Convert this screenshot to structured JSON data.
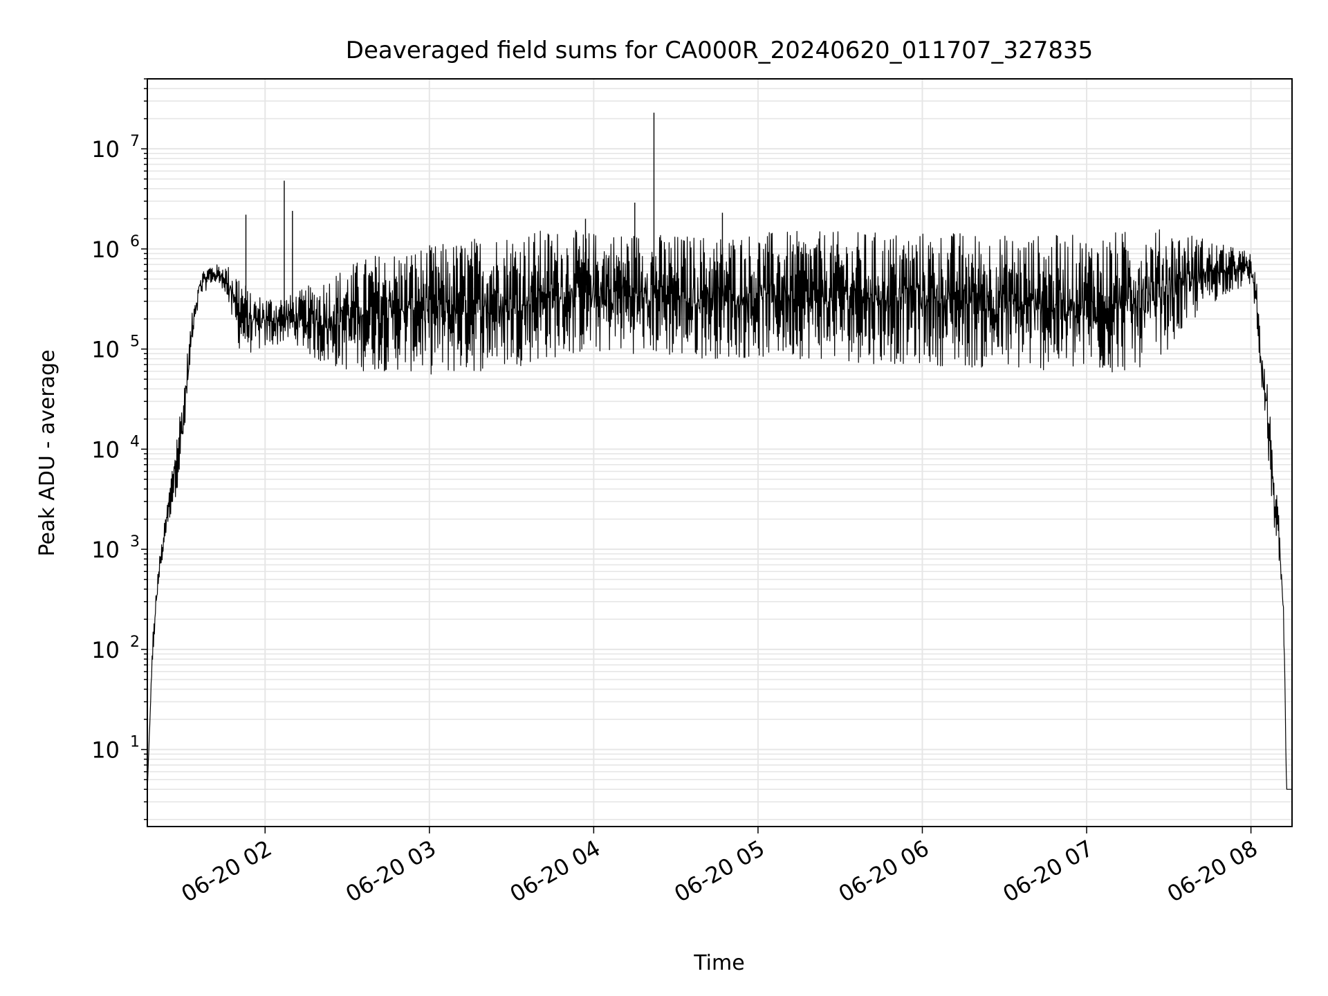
{
  "chart_data": {
    "type": "line",
    "title": "Deaveraged field sums for CA000R_20240620_011707_327835",
    "xlabel": "Time",
    "ylabel": "Peak ADU - average",
    "yscale": "log",
    "ylim": [
      1.7,
      50000000
    ],
    "xlim": [
      "2024-06-20 01:17",
      "2024-06-20 08:15"
    ],
    "grid": true,
    "x_ticks": [
      {
        "time": "2024-06-20 02:00",
        "label": "06-20 02"
      },
      {
        "time": "2024-06-20 03:00",
        "label": "06-20 03"
      },
      {
        "time": "2024-06-20 04:00",
        "label": "06-20 04"
      },
      {
        "time": "2024-06-20 05:00",
        "label": "06-20 05"
      },
      {
        "time": "2024-06-20 06:00",
        "label": "06-20 06"
      },
      {
        "time": "2024-06-20 07:00",
        "label": "06-20 07"
      },
      {
        "time": "2024-06-20 08:00",
        "label": "06-20 08"
      }
    ],
    "y_ticks": [
      {
        "value": 10,
        "mantissa": "10",
        "exponent": "1"
      },
      {
        "value": 100,
        "mantissa": "10",
        "exponent": "2"
      },
      {
        "value": 1000,
        "mantissa": "10",
        "exponent": "3"
      },
      {
        "value": 10000,
        "mantissa": "10",
        "exponent": "4"
      },
      {
        "value": 100000,
        "mantissa": "10",
        "exponent": "5"
      },
      {
        "value": 1000000,
        "mantissa": "10",
        "exponent": "6"
      },
      {
        "value": 10000000,
        "mantissa": "10",
        "exponent": "7"
      }
    ],
    "line_color": "#000000",
    "grid_color": "#e6e6e6",
    "series": [
      {
        "envelope": {
          "comment_free": true,
          "x": [
            "2024-06-20 01:17",
            "2024-06-20 01:19",
            "2024-06-20 01:21",
            "2024-06-20 01:24",
            "2024-06-20 01:27",
            "2024-06-20 01:30",
            "2024-06-20 01:33",
            "2024-06-20 01:36",
            "2024-06-20 01:40",
            "2024-06-20 01:45",
            "2024-06-20 01:50",
            "2024-06-20 01:55",
            "2024-06-20 02:00",
            "2024-06-20 02:10",
            "2024-06-20 02:20",
            "2024-06-20 02:30",
            "2024-06-20 02:40",
            "2024-06-20 02:50",
            "2024-06-20 03:00",
            "2024-06-20 03:10",
            "2024-06-20 03:20",
            "2024-06-20 03:30",
            "2024-06-20 03:45",
            "2024-06-20 04:00",
            "2024-06-20 04:15",
            "2024-06-20 04:30",
            "2024-06-20 04:45",
            "2024-06-20 05:00",
            "2024-06-20 05:15",
            "2024-06-20 05:30",
            "2024-06-20 05:45",
            "2024-06-20 06:00",
            "2024-06-20 06:15",
            "2024-06-20 06:30",
            "2024-06-20 06:45",
            "2024-06-20 07:00",
            "2024-06-20 07:10",
            "2024-06-20 07:20",
            "2024-06-20 07:30",
            "2024-06-20 07:40",
            "2024-06-20 07:50",
            "2024-06-20 07:57",
            "2024-06-20 08:00",
            "2024-06-20 08:02",
            "2024-06-20 08:04",
            "2024-06-20 08:06",
            "2024-06-20 08:08",
            "2024-06-20 08:10",
            "2024-06-20 08:12",
            "2024-06-20 08:13",
            "2024-06-20 08:14",
            "2024-06-20 08:15"
          ],
          "low": [
            4,
            80,
            400,
            1500,
            3000,
            8000,
            80000,
            300000,
            450000,
            400000,
            100000,
            90000,
            100000,
            120000,
            70000,
            60000,
            60000,
            60000,
            55000,
            55000,
            60000,
            65000,
            80000,
            90000,
            90000,
            80000,
            80000,
            80000,
            80000,
            75000,
            70000,
            70000,
            65000,
            60000,
            60000,
            55000,
            55000,
            65000,
            100000,
            200000,
            350000,
            400000,
            450000,
            200000,
            40000,
            10000,
            2000,
            800,
            100,
            4,
            4,
            4
          ],
          "high": [
            4,
            150,
            700,
            2500,
            12000,
            40000,
            200000,
            600000,
            700000,
            700000,
            650000,
            350000,
            350000,
            350000,
            500000,
            700000,
            900000,
            1000000,
            1100000,
            1200000,
            1400000,
            1500000,
            1600000,
            1500000,
            1500000,
            1400000,
            1400000,
            1500000,
            1500000,
            1500000,
            1500000,
            1500000,
            1500000,
            1400000,
            1400000,
            1400000,
            1500000,
            1600000,
            1600000,
            1400000,
            1100000,
            1000000,
            900000,
            500000,
            80000,
            60000,
            8000,
            3000,
            400,
            4,
            4,
            4
          ]
        }
      }
    ],
    "spikes": [
      {
        "time": "2024-06-20 01:53",
        "value": 2200000
      },
      {
        "time": "2024-06-20 02:07",
        "value": 4800000
      },
      {
        "time": "2024-06-20 02:10",
        "value": 2400000
      },
      {
        "time": "2024-06-20 03:57",
        "value": 2000000
      },
      {
        "time": "2024-06-20 04:15",
        "value": 2900000
      },
      {
        "time": "2024-06-20 04:22",
        "value": 23000000
      },
      {
        "time": "2024-06-20 04:47",
        "value": 2300000
      }
    ]
  }
}
